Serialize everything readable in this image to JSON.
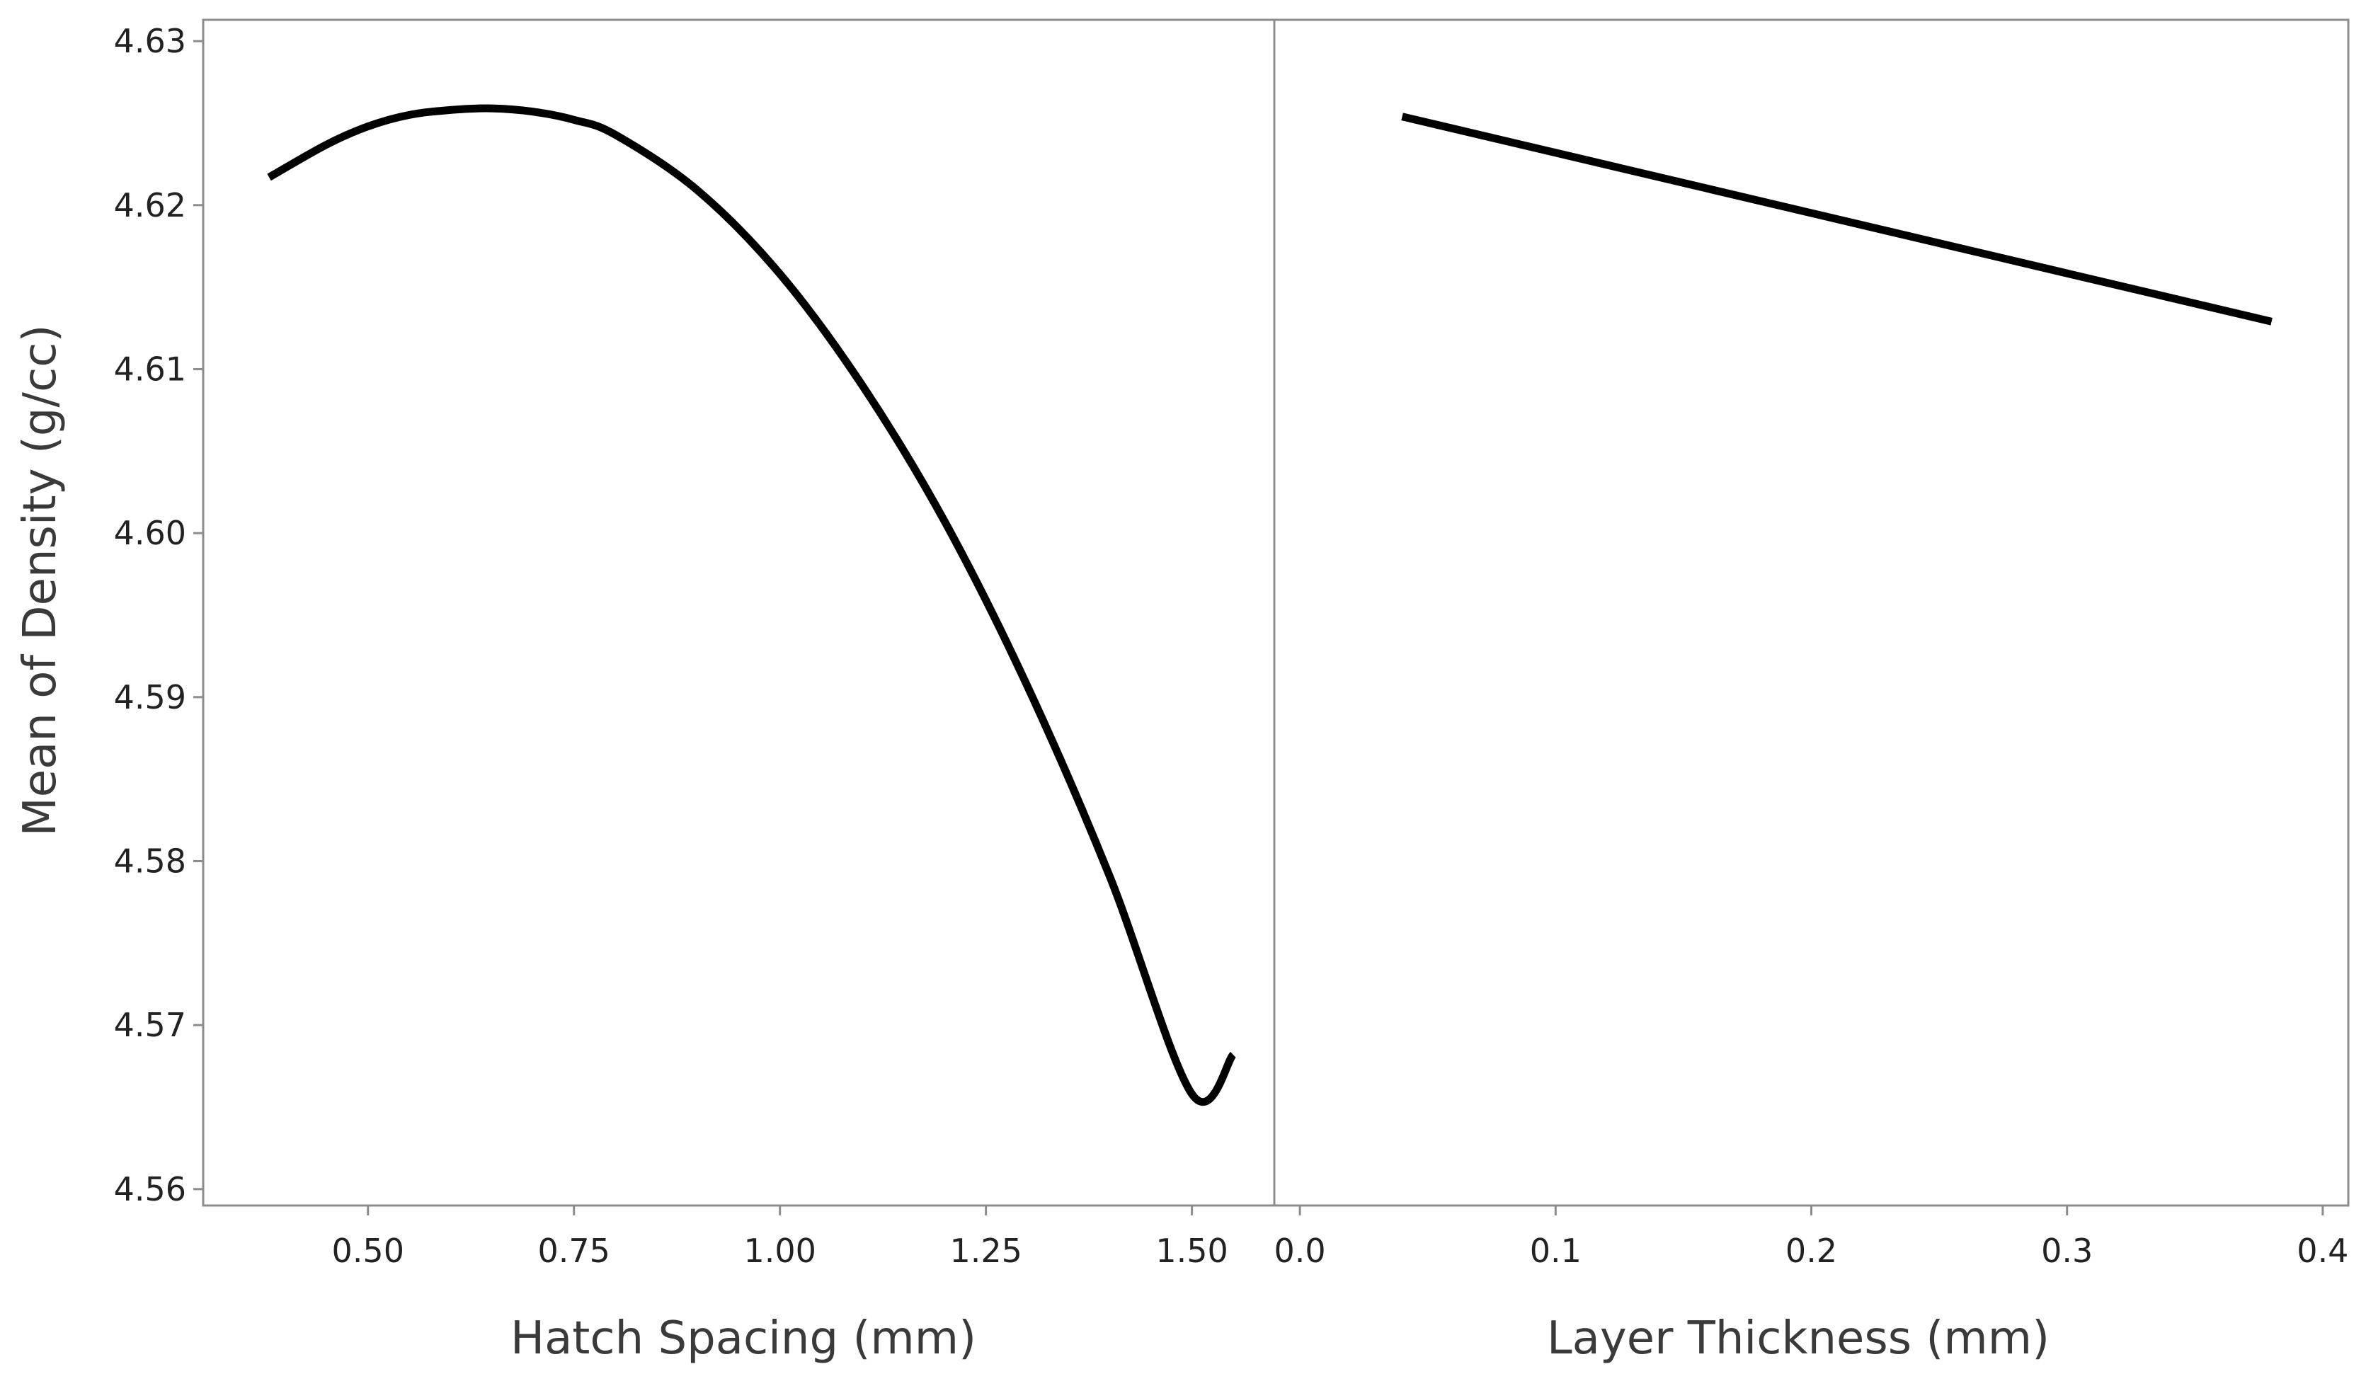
{
  "chart_data": [
    {
      "type": "line",
      "title": "",
      "xlabel": "Hatch Spacing (mm)",
      "ylabel": "Mean of Density (g/cc)",
      "x_ticks": [
        "0.50",
        "0.75",
        "1.00",
        "1.25",
        "1.50"
      ],
      "x_tick_values": [
        0.5,
        0.75,
        1.0,
        1.25,
        1.5
      ],
      "y_ticks": [
        "4.56",
        "4.57",
        "4.58",
        "4.59",
        "4.60",
        "4.61",
        "4.62",
        "4.63"
      ],
      "y_tick_values": [
        4.56,
        4.57,
        4.58,
        4.59,
        4.6,
        4.61,
        4.62,
        4.63
      ],
      "xlim": [
        0.3,
        1.6
      ],
      "ylim": [
        4.559,
        4.6313
      ],
      "grid": false,
      "series": [
        {
          "x": [
            0.38,
            0.45,
            0.5,
            0.55,
            0.6,
            0.65,
            0.7,
            0.75,
            0.8,
            0.9,
            1.0,
            1.1,
            1.2,
            1.3,
            1.4,
            1.5,
            1.55
          ],
          "y": [
            4.6217,
            4.6237,
            4.6248,
            4.6255,
            4.6258,
            4.6259,
            4.6257,
            4.6252,
            4.6243,
            4.6209,
            4.6158,
            4.609,
            4.6007,
            4.5907,
            4.5791,
            4.5658,
            4.5682
          ]
        }
      ]
    },
    {
      "type": "line",
      "title": "",
      "xlabel": "Layer Thickness (mm)",
      "ylabel": "",
      "x_ticks": [
        "0.0",
        "0.1",
        "0.2",
        "0.3",
        "0.4"
      ],
      "x_tick_values": [
        0.0,
        0.1,
        0.2,
        0.3,
        0.4
      ],
      "xlim": [
        -0.01,
        0.41
      ],
      "ylim": [
        4.559,
        4.6313
      ],
      "grid": false,
      "series": [
        {
          "x": [
            0.04,
            0.38
          ],
          "y": [
            4.6254,
            4.6129
          ]
        }
      ]
    }
  ]
}
